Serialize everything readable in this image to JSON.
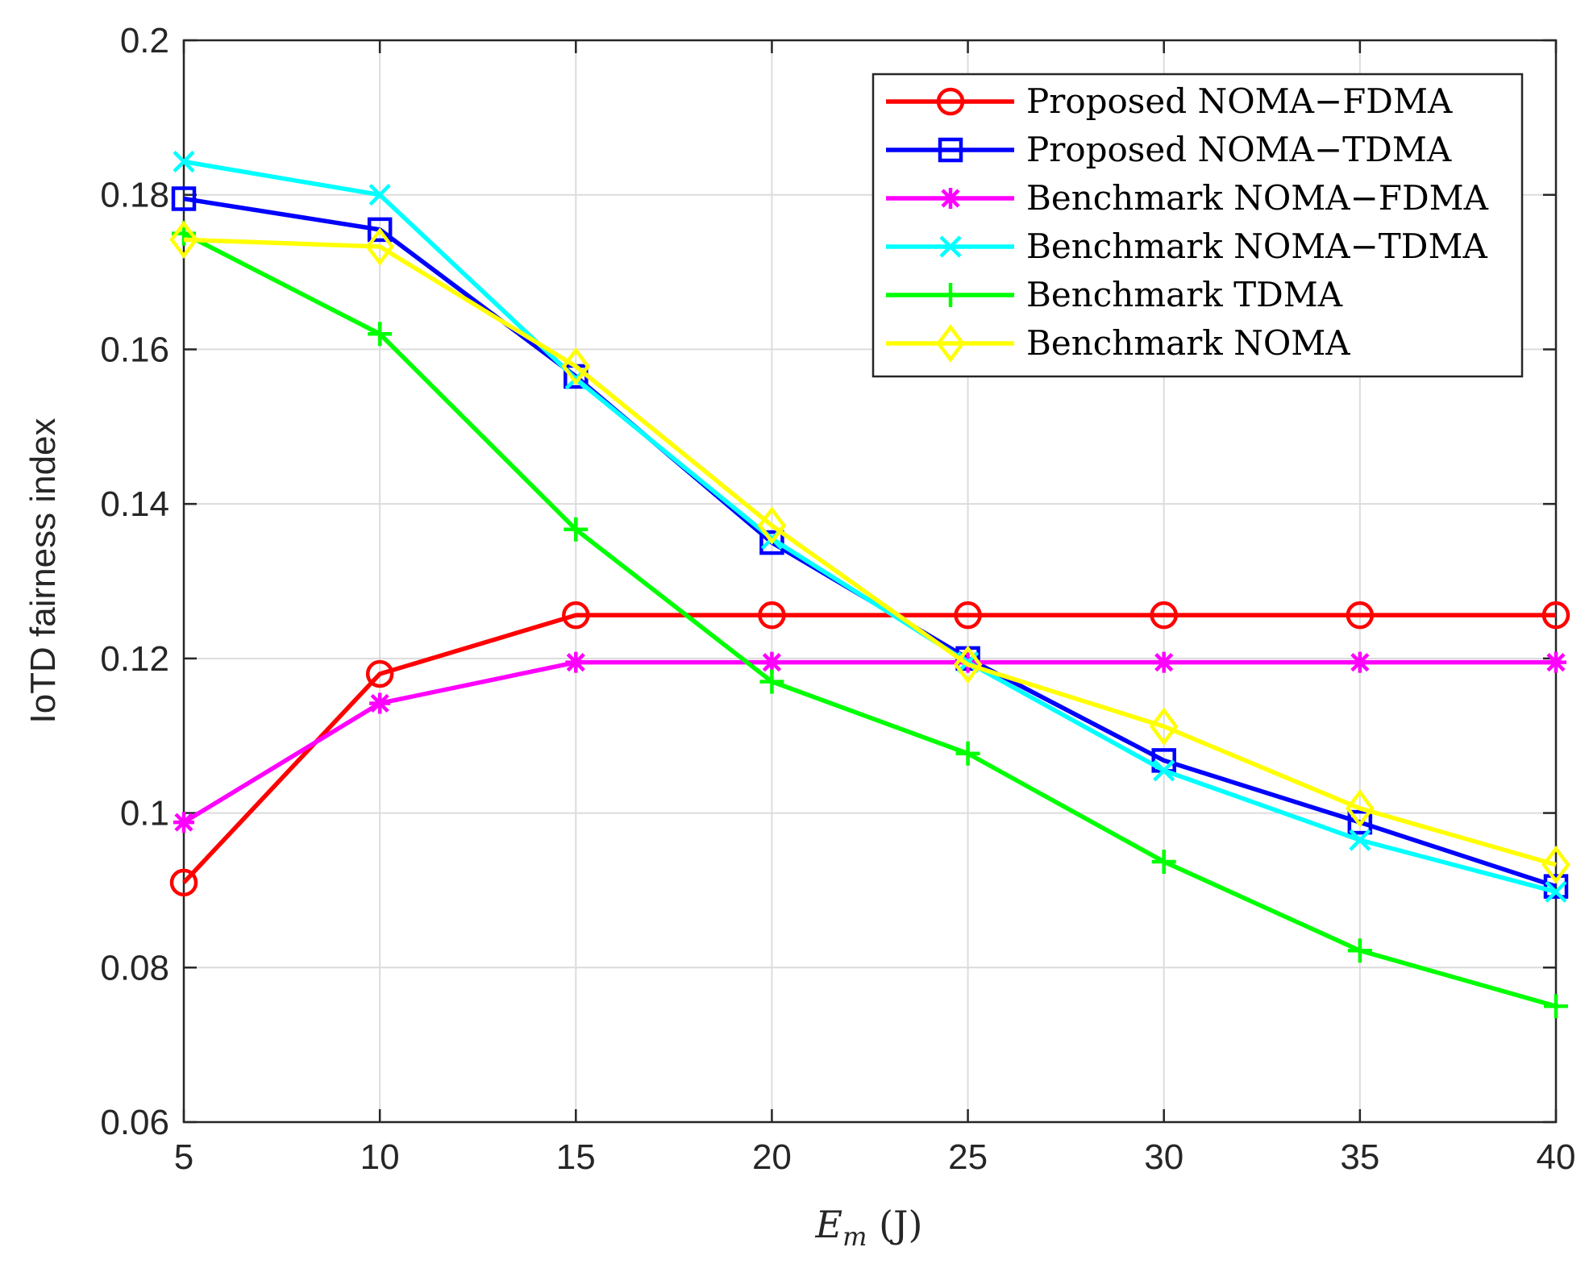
{
  "chart_data": {
    "type": "line",
    "title": "",
    "xlabel": "E",
    "xlabel_sub": "m",
    "xlabel_unit": " (J)",
    "ylabel": "IoTD fairness index",
    "x": [
      5,
      10,
      15,
      20,
      25,
      30,
      35,
      40
    ],
    "xlim": [
      5,
      40
    ],
    "ylim": [
      0.06,
      0.2
    ],
    "xticks": [
      5,
      10,
      15,
      20,
      25,
      30,
      35,
      40
    ],
    "xtick_labels": [
      "5",
      "10",
      "15",
      "20",
      "25",
      "30",
      "35",
      "40"
    ],
    "yticks": [
      0.06,
      0.08,
      0.1,
      0.12,
      0.14,
      0.16,
      0.18,
      0.2
    ],
    "ytick_labels": [
      "0.06",
      "0.08",
      "0.1",
      "0.12",
      "0.14",
      "0.16",
      "0.18",
      "0.2"
    ],
    "grid": true,
    "legend_position": "top-right",
    "series": [
      {
        "name": "Proposed NOMA−FDMA",
        "color": "#ff0000",
        "marker": "circle",
        "values": [
          0.091,
          0.118,
          0.1256,
          0.1256,
          0.1256,
          0.1256,
          0.1256,
          0.1256
        ]
      },
      {
        "name": "Proposed NOMA−TDMA",
        "color": "#0000ff",
        "marker": "square",
        "values": [
          0.1795,
          0.1755,
          0.1565,
          0.135,
          0.12,
          0.1068,
          0.0988,
          0.0905
        ]
      },
      {
        "name": "Benchmark NOMA−FDMA",
        "color": "#ff00ff",
        "marker": "asterisk",
        "values": [
          0.0988,
          0.1142,
          0.1195,
          0.1195,
          0.1195,
          0.1195,
          0.1195,
          0.1195
        ]
      },
      {
        "name": "Benchmark NOMA−TDMA",
        "color": "#00ffff",
        "marker": "x",
        "values": [
          0.1843,
          0.18,
          0.1562,
          0.1355,
          0.1195,
          0.1055,
          0.0965,
          0.0898
        ]
      },
      {
        "name": "Benchmark TDMA",
        "color": "#00ff00",
        "marker": "plus",
        "values": [
          0.175,
          0.162,
          0.1367,
          0.117,
          0.1077,
          0.0937,
          0.0822,
          0.075
        ]
      },
      {
        "name": "Benchmark NOMA",
        "color": "#ffff00",
        "marker": "diamond",
        "values": [
          0.1742,
          0.1733,
          0.1578,
          0.1372,
          0.1192,
          0.1112,
          0.1006,
          0.0933
        ]
      }
    ]
  }
}
